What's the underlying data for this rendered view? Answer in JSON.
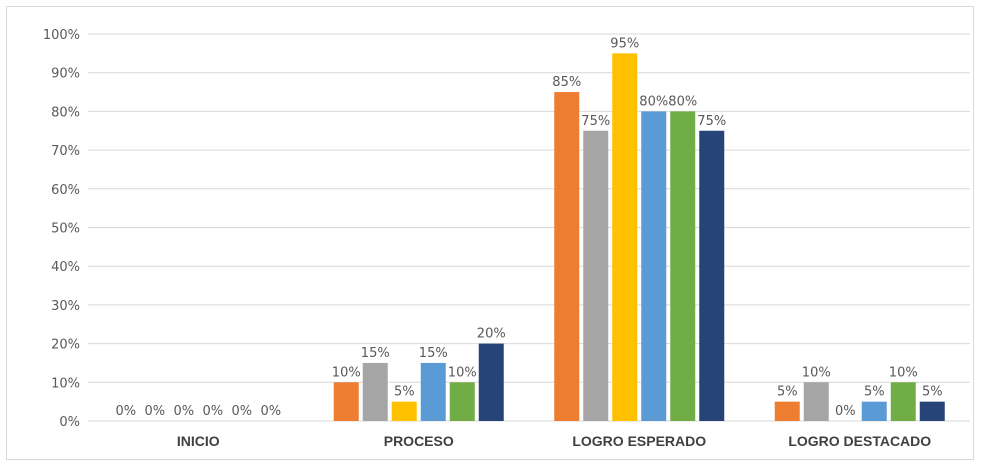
{
  "chart_data": {
    "type": "bar",
    "title": "",
    "xlabel": "",
    "ylabel": "",
    "categories": [
      "INICIO",
      "PROCESO",
      "LOGRO ESPERADO",
      "LOGRO DESTACADO"
    ],
    "ylim": [
      0,
      100
    ],
    "yticks": [
      "0%",
      "10%",
      "20%",
      "30%",
      "40%",
      "50%",
      "60%",
      "70%",
      "80%",
      "90%",
      "100%"
    ],
    "grid": true,
    "legend": "none",
    "series": [
      {
        "color": "#ed7d31",
        "values": [
          0,
          10,
          85,
          5
        ],
        "labels": [
          "0%",
          "10%",
          "85%",
          "5%"
        ]
      },
      {
        "color": "#a5a5a5",
        "values": [
          0,
          15,
          75,
          10
        ],
        "labels": [
          "0%",
          "15%",
          "75%",
          "10%"
        ]
      },
      {
        "color": "#ffc000",
        "values": [
          0,
          5,
          95,
          0
        ],
        "labels": [
          "0%",
          "5%",
          "95%",
          "0%"
        ]
      },
      {
        "color": "#5b9bd5",
        "values": [
          0,
          15,
          80,
          5
        ],
        "labels": [
          "0%",
          "15%",
          "80%",
          "5%"
        ]
      },
      {
        "color": "#70ad47",
        "values": [
          0,
          10,
          80,
          10
        ],
        "labels": [
          "0%",
          "10%",
          "80%",
          "10%"
        ]
      },
      {
        "color": "#264478",
        "values": [
          0,
          20,
          75,
          5
        ],
        "labels": [
          "0%",
          "20%",
          "75%",
          "5%"
        ]
      }
    ]
  }
}
